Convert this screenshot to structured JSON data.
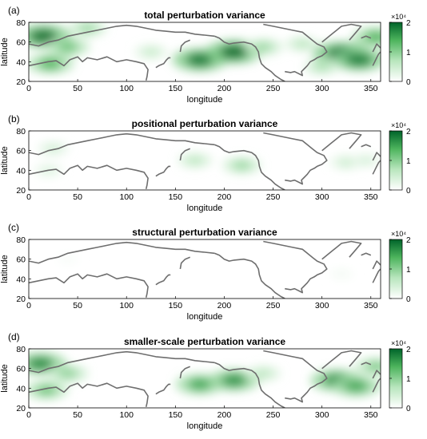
{
  "colors": {
    "colormap": [
      "#ffffff",
      "#b8e6bd",
      "#4cb35c",
      "#00642a"
    ],
    "coast": "#6e6e6e",
    "frame": "#000000"
  },
  "chart_data": [
    {
      "type": "heatmap",
      "panel_label": "(a)",
      "title": "total perturbation variance",
      "xlabel": "longitude",
      "ylabel": "latitude",
      "xlim": [
        0,
        360
      ],
      "ylim": [
        20,
        80
      ],
      "xticks": [
        "0",
        "50",
        "100",
        "150",
        "200",
        "250",
        "300",
        "350"
      ],
      "yticks": [
        "20",
        "40",
        "60",
        "80"
      ],
      "colorbar": {
        "min": 0,
        "max": 20000,
        "ticks": [
          "0",
          "1",
          "2"
        ],
        "exponent": "×10⁴"
      },
      "hotspots": [
        {
          "lon": 15,
          "lat": 66,
          "value": 19000
        },
        {
          "lon": 40,
          "lat": 55,
          "value": 12000
        },
        {
          "lon": 22,
          "lat": 38,
          "value": 14000
        },
        {
          "lon": 60,
          "lat": 74,
          "value": 9000
        },
        {
          "lon": 125,
          "lat": 50,
          "value": 6000
        },
        {
          "lon": 175,
          "lat": 42,
          "value": 18500
        },
        {
          "lon": 210,
          "lat": 50,
          "value": 19500
        },
        {
          "lon": 240,
          "lat": 55,
          "value": 9000
        },
        {
          "lon": 280,
          "lat": 58,
          "value": 7000
        },
        {
          "lon": 320,
          "lat": 48,
          "value": 20000
        },
        {
          "lon": 338,
          "lat": 42,
          "value": 18000
        },
        {
          "lon": 355,
          "lat": 65,
          "value": 14000
        },
        {
          "lon": 300,
          "lat": 35,
          "value": 8000
        }
      ]
    },
    {
      "type": "heatmap",
      "panel_label": "(b)",
      "title": "positional perturbation variance",
      "xlabel": "longitude",
      "ylabel": "latitude",
      "xlim": [
        0,
        360
      ],
      "ylim": [
        20,
        80
      ],
      "xticks": [
        "0",
        "50",
        "100",
        "150",
        "200",
        "250",
        "300",
        "350"
      ],
      "yticks": [
        "20",
        "40",
        "60",
        "80"
      ],
      "colorbar": {
        "min": 0,
        "max": 20000,
        "ticks": [
          "0",
          "1",
          "2"
        ],
        "exponent": "×10⁴"
      },
      "hotspots": [
        {
          "lon": 25,
          "lat": 62,
          "value": 5000
        },
        {
          "lon": 20,
          "lat": 40,
          "value": 4000
        },
        {
          "lon": 170,
          "lat": 50,
          "value": 7000
        },
        {
          "lon": 218,
          "lat": 45,
          "value": 9000
        },
        {
          "lon": 325,
          "lat": 48,
          "value": 5500
        },
        {
          "lon": 345,
          "lat": 50,
          "value": 4500
        }
      ]
    },
    {
      "type": "heatmap",
      "panel_label": "(c)",
      "title": "structural perturbation variance",
      "xlabel": "longitude",
      "ylabel": "latitude",
      "xlim": [
        0,
        360
      ],
      "ylim": [
        20,
        80
      ],
      "xticks": [
        "0",
        "50",
        "100",
        "150",
        "200",
        "250",
        "300",
        "350"
      ],
      "yticks": [
        "20",
        "40",
        "60",
        "80"
      ],
      "colorbar": {
        "min": 0,
        "max": 20000,
        "ticks": [
          "0",
          "1",
          "2"
        ],
        "exponent": "×10⁴"
      },
      "hotspots": [
        {
          "lon": 320,
          "lat": 45,
          "value": 1500
        },
        {
          "lon": 40,
          "lat": 60,
          "value": 1000
        }
      ]
    },
    {
      "type": "heatmap",
      "panel_label": "(d)",
      "title": "smaller-scale perturbation variance",
      "xlabel": "longitude",
      "ylabel": "latitude",
      "xlim": [
        0,
        360
      ],
      "ylim": [
        20,
        80
      ],
      "xticks": [
        "0",
        "50",
        "100",
        "150",
        "200",
        "250",
        "300",
        "350"
      ],
      "yticks": [
        "20",
        "40",
        "60",
        "80"
      ],
      "colorbar": {
        "min": 0,
        "max": 20000,
        "ticks": [
          "0",
          "1",
          "2"
        ],
        "exponent": "×10⁴"
      },
      "hotspots": [
        {
          "lon": 12,
          "lat": 65,
          "value": 17000
        },
        {
          "lon": 40,
          "lat": 55,
          "value": 10000
        },
        {
          "lon": 18,
          "lat": 38,
          "value": 12000
        },
        {
          "lon": 175,
          "lat": 44,
          "value": 15000
        },
        {
          "lon": 210,
          "lat": 48,
          "value": 16500
        },
        {
          "lon": 240,
          "lat": 55,
          "value": 7000
        },
        {
          "lon": 315,
          "lat": 48,
          "value": 17000
        },
        {
          "lon": 335,
          "lat": 42,
          "value": 15000
        },
        {
          "lon": 355,
          "lat": 62,
          "value": 11000
        }
      ]
    }
  ]
}
